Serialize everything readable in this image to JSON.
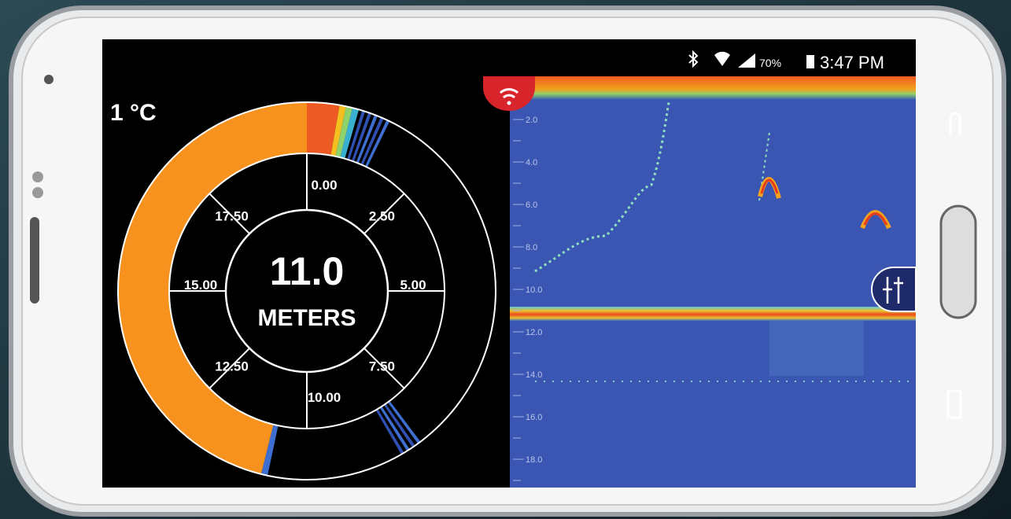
{
  "status_bar": {
    "battery": "70%",
    "time": "3:47 PM"
  },
  "temperature": "1 °C",
  "dial": {
    "labels": [
      "0.00",
      "2.50",
      "5.00",
      "7.50",
      "10.00",
      "12.50",
      "15.00",
      "17.50"
    ],
    "depth": "11.0",
    "unit": "METERS"
  },
  "sonar": {
    "depth_ticks": [
      "2.0",
      "4.0",
      "6.0",
      "8.0",
      "10.0",
      "12.0",
      "14.0",
      "16.0",
      "18.0"
    ]
  }
}
